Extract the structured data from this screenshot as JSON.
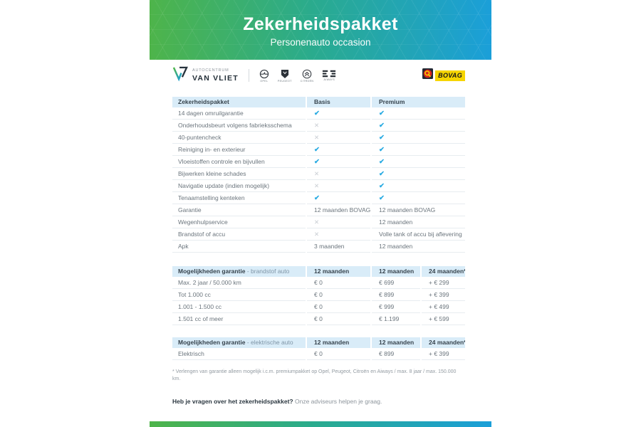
{
  "banner": {
    "title": "Zekerheidspakket",
    "subtitle": "Personenauto occasion"
  },
  "logos": {
    "dealer": {
      "line1": "AUTOCENTRUM",
      "line2": "VAN VLIET"
    },
    "brands": [
      "OPEL",
      "PEUGEOT",
      "CITROËN",
      "AIWAYS"
    ],
    "bovag_label": "BOVAG"
  },
  "glyphs": {
    "check": "✔",
    "cross": "✕"
  },
  "colors": {
    "green": "#4eb44a",
    "blue": "#1b9fd9",
    "check": "#29abe2",
    "cross": "#c9ced3",
    "band": "#d9ecf8",
    "bovag_yellow": "#f6d500"
  },
  "package_table": {
    "headers": [
      "Zekerheidspakket",
      "Basis",
      "Premium"
    ],
    "rows": [
      [
        "14 dagen omruilgarantie",
        "check",
        "check"
      ],
      [
        "Onderhoudsbeurt volgens fabrieksschema",
        "cross",
        "check"
      ],
      [
        "40-puntencheck",
        "cross",
        "check"
      ],
      [
        "Reiniging in- en exterieur",
        "check",
        "check"
      ],
      [
        "Vloeistoffen controle en bijvullen",
        "check",
        "check"
      ],
      [
        "Bijwerken kleine schades",
        "cross",
        "check"
      ],
      [
        "Navigatie update (indien mogelijk)",
        "cross",
        "check"
      ],
      [
        "Tenaamstelling kenteken",
        "check",
        "check"
      ],
      [
        "Garantie",
        "12 maanden BOVAG",
        "12 maanden BOVAG"
      ],
      [
        "Wegenhulpservice",
        "cross",
        "12 maanden"
      ],
      [
        "Brandstof of accu",
        "cross",
        "Volle tank of accu bij aflevering"
      ],
      [
        "Apk",
        "3 maanden",
        "12 maanden"
      ]
    ]
  },
  "warranty_tables": [
    {
      "title_bold": "Mogelijkheden garantie",
      "title_light": " - brandstof auto",
      "headers": [
        "12 maanden",
        "12 maanden",
        "24 maanden*"
      ],
      "rows": [
        [
          "Max. 2 jaar / 50.000 km",
          "€ 0",
          "€ 699",
          "+ € 299"
        ],
        [
          "Tot 1.000 cc",
          "€ 0",
          "€ 899",
          "+ € 399"
        ],
        [
          "1.001 - 1.500 cc",
          "€ 0",
          "€ 999",
          "+ € 499"
        ],
        [
          "1.501 cc of meer",
          "€ 0",
          "€ 1.199",
          "+ € 599"
        ]
      ]
    },
    {
      "title_bold": "Mogelijkheden garantie",
      "title_light": " - elektrische auto",
      "headers": [
        "12 maanden",
        "12 maanden",
        "24 maanden*"
      ],
      "rows": [
        [
          "Elektrisch",
          "€ 0",
          "€ 899",
          "+ € 399"
        ]
      ]
    }
  ],
  "footnote": "* Verlengen van garantie alleen mogelijk i.c.m. premiumpakket op Opel, Peugeot, Citroën en Aiways / max. 8 jaar / max. 150.000 km.",
  "question": {
    "bold": "Heb je vragen over het zekerheidspakket?",
    "regular": "Onze adviseurs helpen je graag."
  }
}
